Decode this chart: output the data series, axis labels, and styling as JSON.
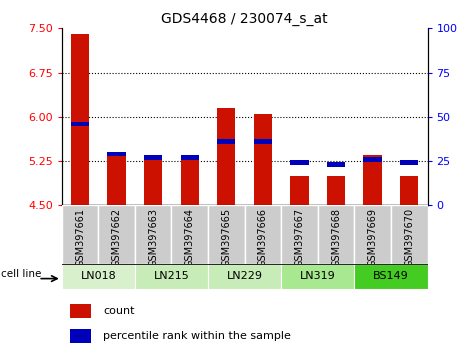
{
  "title": "GDS4468 / 230074_s_at",
  "samples": [
    "GSM397661",
    "GSM397662",
    "GSM397663",
    "GSM397664",
    "GSM397665",
    "GSM397666",
    "GSM397667",
    "GSM397668",
    "GSM397669",
    "GSM397670"
  ],
  "count_values": [
    7.4,
    5.35,
    5.28,
    5.28,
    6.15,
    6.05,
    5.0,
    5.0,
    5.35,
    5.0
  ],
  "percentile_values": [
    46,
    29,
    27,
    27,
    36,
    36,
    24,
    23,
    26,
    24
  ],
  "cell_lines": [
    {
      "name": "LN018",
      "start": 0,
      "end": 2,
      "color": "#d8f0cc"
    },
    {
      "name": "LN215",
      "start": 2,
      "end": 4,
      "color": "#c8ecb8"
    },
    {
      "name": "LN229",
      "start": 4,
      "end": 6,
      "color": "#c8ecb8"
    },
    {
      "name": "LN319",
      "start": 6,
      "end": 8,
      "color": "#a8e890"
    },
    {
      "name": "BS149",
      "start": 8,
      "end": 10,
      "color": "#44cc22"
    }
  ],
  "ylim_left": [
    4.5,
    7.5
  ],
  "yticks_left": [
    4.5,
    5.25,
    6.0,
    6.75,
    7.5
  ],
  "yticks_right": [
    0,
    25,
    50,
    75,
    100
  ],
  "bar_color": "#cc1100",
  "percentile_color": "#0000bb",
  "bar_width": 0.5,
  "baseline": 4.5,
  "xlabel_bg_color": "#cccccc",
  "cell_line_label": "cell line"
}
